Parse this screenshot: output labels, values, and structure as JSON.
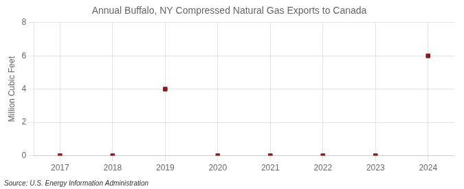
{
  "chart_data": {
    "type": "scatter",
    "title": "Annual Buffalo, NY Compressed Natural Gas Exports to Canada",
    "ylabel": "Million Cubic Feet",
    "source": "Source: U.S. Energy Information Administration",
    "x": [
      2017,
      2018,
      2019,
      2020,
      2021,
      2022,
      2023,
      2024
    ],
    "values": [
      0,
      0,
      4,
      0,
      0,
      0,
      0,
      6
    ],
    "color": "#8b1a1a",
    "marker": "square",
    "xlim": [
      2016.5,
      2024.5
    ],
    "xticks": [
      2017,
      2018,
      2019,
      2020,
      2021,
      2022,
      2023,
      2024
    ],
    "ylim": [
      0,
      8
    ],
    "yticks": [
      0,
      2,
      4,
      6,
      8
    ],
    "grid": true
  }
}
